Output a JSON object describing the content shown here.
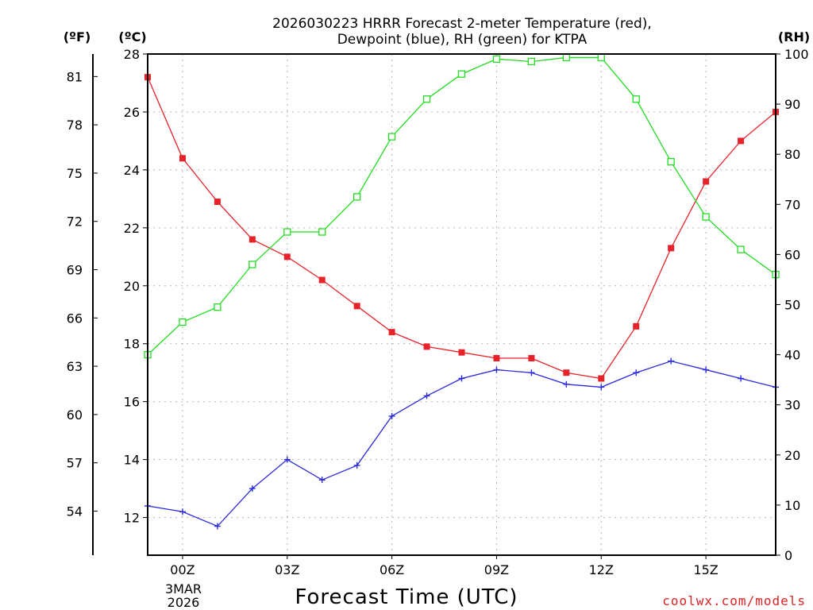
{
  "chart": {
    "title_line1": "2026030223 HRRR Forecast 2-meter Temperature (red),",
    "title_line2": "Dewpoint (blue), RH (green) for KTPA",
    "unit_f": "(ºF)",
    "unit_c": "(ºC)",
    "unit_rh": "(RH)",
    "xlabel": "Forecast Time (UTC)",
    "date_line1": "3MAR",
    "date_line2": "2026",
    "credit": "coolwx.com/models"
  },
  "colors": {
    "temperature": "#e8222a",
    "dewpoint": "#2b2bdd",
    "rh": "#22dd22",
    "credit": "#dd2222"
  },
  "chart_data": {
    "type": "line",
    "x_hours": [
      -1,
      0,
      1,
      2,
      3,
      4,
      5,
      6,
      7,
      8,
      9,
      10,
      11,
      12,
      13,
      14,
      15,
      16,
      17
    ],
    "x_ticks": [
      {
        "hour": 0,
        "label": "00Z"
      },
      {
        "hour": 3,
        "label": "03Z"
      },
      {
        "hour": 6,
        "label": "06Z"
      },
      {
        "hour": 9,
        "label": "09Z"
      },
      {
        "hour": 12,
        "label": "12Z"
      },
      {
        "hour": 15,
        "label": "15Z"
      }
    ],
    "xlim": [
      -1,
      17
    ],
    "y_celsius": {
      "range": [
        10.7,
        28
      ],
      "ticks": [
        "12",
        "14",
        "16",
        "18",
        "20",
        "22",
        "24",
        "26",
        "28"
      ]
    },
    "y_fahrenheit": {
      "ticks": [
        "54",
        "57",
        "60",
        "63",
        "66",
        "69",
        "72",
        "75",
        "78",
        "81"
      ]
    },
    "y_rh": {
      "range": [
        0,
        100
      ],
      "ticks": [
        "0",
        "10",
        "20",
        "30",
        "40",
        "50",
        "60",
        "70",
        "80",
        "90",
        "100"
      ]
    },
    "series": [
      {
        "name": "Temperature (°C)",
        "axis": "celsius",
        "marker": "filled-square",
        "values": [
          27.2,
          24.4,
          22.9,
          21.6,
          21.0,
          20.2,
          19.3,
          18.4,
          17.9,
          17.7,
          17.5,
          17.5,
          17.0,
          16.8,
          18.6,
          21.3,
          23.6,
          25.0,
          26.0
        ]
      },
      {
        "name": "Dewpoint (°C)",
        "axis": "celsius",
        "marker": "plus",
        "values": [
          12.4,
          12.2,
          11.7,
          13.0,
          14.0,
          13.3,
          13.8,
          15.5,
          16.2,
          16.8,
          17.1,
          17.0,
          16.6,
          16.5,
          17.0,
          17.4,
          17.1,
          16.8,
          16.5
        ]
      },
      {
        "name": "RH (%)",
        "axis": "rh",
        "marker": "open-square",
        "values": [
          40.0,
          46.5,
          49.5,
          58.0,
          64.5,
          64.5,
          71.5,
          83.5,
          91.0,
          96.0,
          99.0,
          98.5,
          99.3,
          99.3,
          91.0,
          78.5,
          67.5,
          61.0,
          56.0
        ]
      }
    ]
  }
}
